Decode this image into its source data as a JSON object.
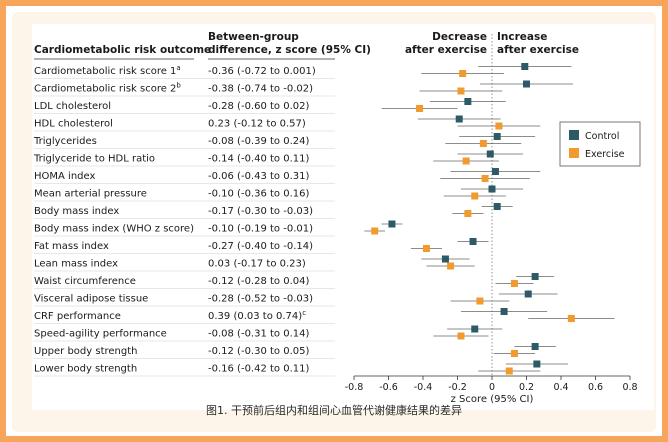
{
  "figure": {
    "caption": "图1. 干预前后组内和组间心血管代谢健康结果的差异"
  },
  "table": {
    "col1_header": "Cardiometabolic risk outcome",
    "col2_header_line1": "Between-group",
    "col2_header_line2": "difference, z score (95% CI)"
  },
  "chart_data": {
    "type": "scatter",
    "subtype": "forest-plot",
    "xlabel": "z Score (95% CI)",
    "xlim": [
      -0.8,
      0.8
    ],
    "xticks": [
      "-0.8",
      "-0.6",
      "-0.4",
      "-0.2",
      "0",
      "0.2",
      "0.4",
      "0.6",
      "0.8"
    ],
    "tick_values": [
      -0.8,
      -0.6,
      -0.4,
      -0.2,
      0,
      0.2,
      0.4,
      0.6,
      0.8
    ],
    "direction_left_line1": "Decrease",
    "direction_left_line2": "after exercise",
    "direction_right_line1": "Increase",
    "direction_right_line2": "after exercise",
    "legend": {
      "position": "right",
      "entries": [
        {
          "name": "Control",
          "color": "#2d5a66"
        },
        {
          "name": "Exercise",
          "color": "#f29a2e"
        }
      ]
    },
    "rows": [
      {
        "label": "Cardiometabolic risk score 1",
        "sup": "a",
        "diff": "-0.36 (-0.72 to 0.001)",
        "diff_sup": "",
        "control": {
          "est": 0.19,
          "lo": -0.08,
          "hi": 0.46
        },
        "exercise": {
          "est": -0.17,
          "lo": -0.41,
          "hi": 0.07
        }
      },
      {
        "label": "Cardiometabolic risk score 2",
        "sup": "b",
        "diff": "-0.38 (-0.74 to -0.02)",
        "diff_sup": "",
        "control": {
          "est": 0.2,
          "lo": -0.07,
          "hi": 0.47
        },
        "exercise": {
          "est": -0.18,
          "lo": -0.42,
          "hi": 0.06
        }
      },
      {
        "label": "LDL cholesterol",
        "sup": "",
        "diff": "-0.28 (-0.60 to 0.02)",
        "diff_sup": "",
        "control": {
          "est": -0.14,
          "lo": -0.36,
          "hi": 0.08
        },
        "exercise": {
          "est": -0.42,
          "lo": -0.64,
          "hi": -0.2
        }
      },
      {
        "label": "HDL cholesterol",
        "sup": "",
        "diff": "0.23 (-0.12 to 0.57)",
        "diff_sup": "",
        "control": {
          "est": -0.19,
          "lo": -0.43,
          "hi": 0.05
        },
        "exercise": {
          "est": 0.04,
          "lo": -0.2,
          "hi": 0.28
        }
      },
      {
        "label": "Triglycerides",
        "sup": "",
        "diff": "-0.08 (-0.39 to 0.24)",
        "diff_sup": "",
        "control": {
          "est": 0.03,
          "lo": -0.19,
          "hi": 0.25
        },
        "exercise": {
          "est": -0.05,
          "lo": -0.27,
          "hi": 0.17
        }
      },
      {
        "label": "Triglyceride to HDL ratio",
        "sup": "",
        "diff": "-0.14 (-0.40 to 0.11)",
        "diff_sup": "",
        "control": {
          "est": -0.01,
          "lo": -0.2,
          "hi": 0.18
        },
        "exercise": {
          "est": -0.15,
          "lo": -0.34,
          "hi": 0.04
        }
      },
      {
        "label": "HOMA index",
        "sup": "",
        "diff": "-0.06 (-0.43 to 0.31)",
        "diff_sup": "",
        "control": {
          "est": 0.02,
          "lo": -0.24,
          "hi": 0.28
        },
        "exercise": {
          "est": -0.04,
          "lo": -0.3,
          "hi": 0.22
        }
      },
      {
        "label": "Mean arterial pressure",
        "sup": "",
        "diff": "-0.10 (-0.36 to 0.16)",
        "diff_sup": "",
        "control": {
          "est": 0.0,
          "lo": -0.18,
          "hi": 0.18
        },
        "exercise": {
          "est": -0.1,
          "lo": -0.28,
          "hi": 0.08
        }
      },
      {
        "label": "Body mass index",
        "sup": "",
        "diff": "-0.17 (-0.30 to -0.03)",
        "diff_sup": "",
        "control": {
          "est": 0.03,
          "lo": -0.06,
          "hi": 0.12
        },
        "exercise": {
          "est": -0.14,
          "lo": -0.23,
          "hi": -0.05
        }
      },
      {
        "label": "Body mass index (WHO z score)",
        "sup": "",
        "diff": "-0.10 (-0.19 to -0.01)",
        "diff_sup": "",
        "control": {
          "est": -0.58,
          "lo": -0.64,
          "hi": -0.52
        },
        "exercise": {
          "est": -0.68,
          "lo": -0.74,
          "hi": -0.62
        }
      },
      {
        "label": "Fat mass index",
        "sup": "",
        "diff": "-0.27 (-0.40 to -0.14)",
        "diff_sup": "",
        "control": {
          "est": -0.11,
          "lo": -0.2,
          "hi": -0.02
        },
        "exercise": {
          "est": -0.38,
          "lo": -0.47,
          "hi": -0.29
        }
      },
      {
        "label": "Lean mass index",
        "sup": "",
        "diff": "0.03 (-0.17 to 0.23)",
        "diff_sup": "",
        "control": {
          "est": -0.27,
          "lo": -0.41,
          "hi": -0.13
        },
        "exercise": {
          "est": -0.24,
          "lo": -0.38,
          "hi": -0.1
        }
      },
      {
        "label": "Waist circumference",
        "sup": "",
        "diff": "-0.12 (-0.28 to 0.04)",
        "diff_sup": "",
        "control": {
          "est": 0.25,
          "lo": 0.14,
          "hi": 0.36
        },
        "exercise": {
          "est": 0.13,
          "lo": 0.02,
          "hi": 0.24
        }
      },
      {
        "label": "Visceral adipose tissue",
        "sup": "",
        "diff": "-0.28 (-0.52 to -0.03)",
        "diff_sup": "",
        "control": {
          "est": 0.21,
          "lo": 0.04,
          "hi": 0.38
        },
        "exercise": {
          "est": -0.07,
          "lo": -0.24,
          "hi": 0.1
        }
      },
      {
        "label": "CRF performance",
        "sup": "",
        "diff": "0.39 (0.03 to 0.74)",
        "diff_sup": "c",
        "control": {
          "est": 0.07,
          "lo": -0.18,
          "hi": 0.32
        },
        "exercise": {
          "est": 0.46,
          "lo": 0.21,
          "hi": 0.71
        }
      },
      {
        "label": "Speed-agility performance",
        "sup": "",
        "diff": "-0.08 (-0.31 to 0.14)",
        "diff_sup": "",
        "control": {
          "est": -0.1,
          "lo": -0.26,
          "hi": 0.06
        },
        "exercise": {
          "est": -0.18,
          "lo": -0.34,
          "hi": -0.02
        }
      },
      {
        "label": "Upper body strength",
        "sup": "",
        "diff": "-0.12 (-0.30 to 0.05)",
        "diff_sup": "",
        "control": {
          "est": 0.25,
          "lo": 0.13,
          "hi": 0.37
        },
        "exercise": {
          "est": 0.13,
          "lo": 0.01,
          "hi": 0.25
        }
      },
      {
        "label": "Lower body strength",
        "sup": "",
        "diff": "-0.16 (-0.42 to 0.11)",
        "diff_sup": "",
        "control": {
          "est": 0.26,
          "lo": 0.08,
          "hi": 0.44
        },
        "exercise": {
          "est": 0.1,
          "lo": -0.08,
          "hi": 0.28
        }
      }
    ]
  }
}
